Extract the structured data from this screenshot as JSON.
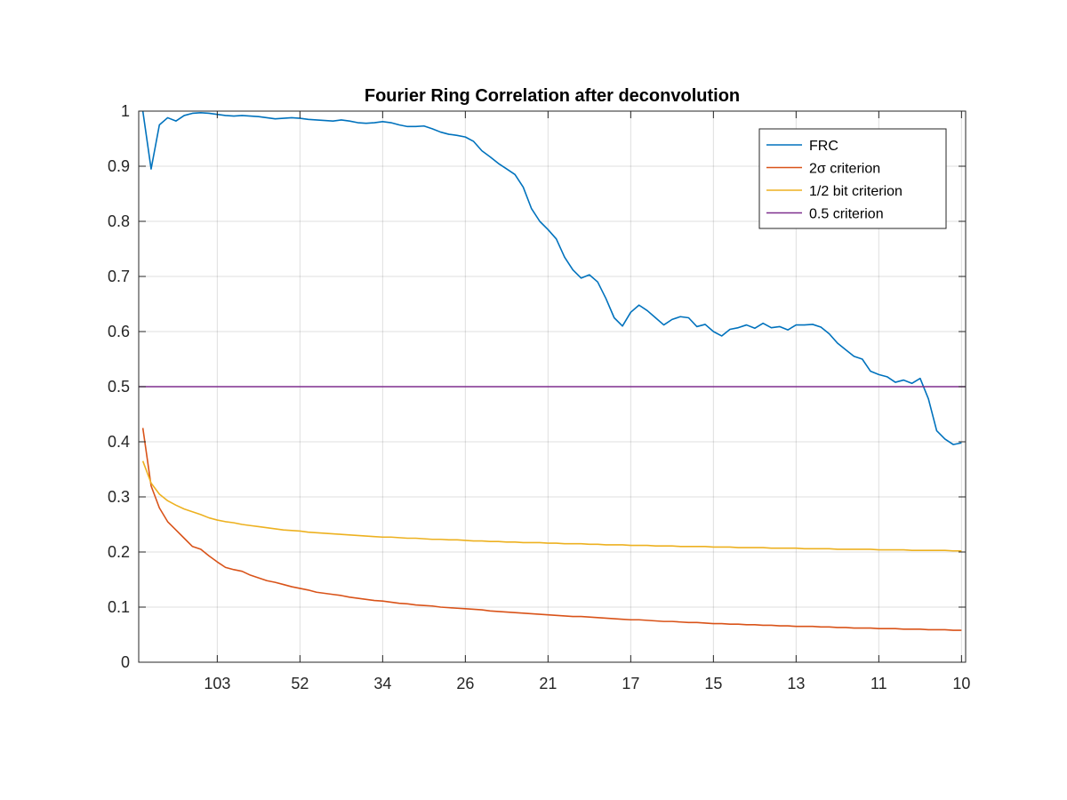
{
  "chart_data": {
    "type": "line",
    "title": "Fourier Ring Correlation after deconvolution",
    "xlabel": "",
    "ylabel": "",
    "x_tick_labels": [
      "103",
      "52",
      "34",
      "26",
      "21",
      "17",
      "15",
      "13",
      "11",
      "10"
    ],
    "x_tick_positions": [
      10,
      20,
      30,
      40,
      50,
      60,
      70,
      80,
      90,
      100
    ],
    "xlim": [
      0.5,
      100.5
    ],
    "ylim": [
      0,
      1
    ],
    "y_ticks": [
      0,
      0.1,
      0.2,
      0.3,
      0.4,
      0.5,
      0.6,
      0.7,
      0.8,
      0.9,
      1
    ],
    "y_tick_labels": [
      "0",
      "0.1",
      "0.2",
      "0.3",
      "0.4",
      "0.5",
      "0.6",
      "0.7",
      "0.8",
      "0.9",
      "1"
    ],
    "grid": true,
    "legend_position": "top-right",
    "series": [
      {
        "name": "FRC",
        "color": "#0072BD",
        "x": [
          1,
          2,
          3,
          4,
          5,
          6,
          7,
          8,
          9,
          10,
          11,
          12,
          13,
          14,
          15,
          16,
          17,
          18,
          19,
          20,
          21,
          22,
          23,
          24,
          25,
          26,
          27,
          28,
          29,
          30,
          31,
          32,
          33,
          34,
          35,
          36,
          37,
          38,
          39,
          40,
          41,
          42,
          43,
          44,
          45,
          46,
          47,
          48,
          49,
          50,
          51,
          52,
          53,
          54,
          55,
          56,
          57,
          58,
          59,
          60,
          61,
          62,
          63,
          64,
          65,
          66,
          67,
          68,
          69,
          70,
          71,
          72,
          73,
          74,
          75,
          76,
          77,
          78,
          79,
          80,
          81,
          82,
          83,
          84,
          85,
          86,
          87,
          88,
          89,
          90,
          91,
          92,
          93,
          94,
          95,
          96,
          97,
          98,
          99,
          100
        ],
        "y": [
          1.0,
          0.895,
          0.975,
          0.988,
          0.982,
          0.992,
          0.996,
          0.997,
          0.996,
          0.994,
          0.992,
          0.991,
          0.992,
          0.991,
          0.99,
          0.988,
          0.986,
          0.987,
          0.988,
          0.987,
          0.985,
          0.984,
          0.983,
          0.982,
          0.984,
          0.982,
          0.979,
          0.978,
          0.979,
          0.981,
          0.979,
          0.975,
          0.972,
          0.972,
          0.973,
          0.968,
          0.962,
          0.958,
          0.956,
          0.953,
          0.945,
          0.928,
          0.917,
          0.905,
          0.895,
          0.885,
          0.862,
          0.823,
          0.8,
          0.785,
          0.768,
          0.735,
          0.712,
          0.697,
          0.703,
          0.69,
          0.66,
          0.625,
          0.61,
          0.635,
          0.648,
          0.638,
          0.625,
          0.612,
          0.622,
          0.627,
          0.625,
          0.609,
          0.613,
          0.6,
          0.592,
          0.604,
          0.607,
          0.612,
          0.606,
          0.615,
          0.607,
          0.609,
          0.603,
          0.612,
          0.612,
          0.613,
          0.608,
          0.596,
          0.579,
          0.567,
          0.555,
          0.55,
          0.528,
          0.522,
          0.518,
          0.508,
          0.512,
          0.506,
          0.515,
          0.478,
          0.42,
          0.405,
          0.395,
          0.398
        ]
      },
      {
        "name": "2σ criterion",
        "color": "#D95319",
        "x": [
          1,
          2,
          3,
          4,
          5,
          6,
          7,
          8,
          9,
          10,
          11,
          12,
          13,
          14,
          15,
          16,
          17,
          18,
          19,
          20,
          21,
          22,
          23,
          24,
          25,
          26,
          27,
          28,
          29,
          30,
          31,
          32,
          33,
          34,
          35,
          36,
          37,
          38,
          39,
          40,
          41,
          42,
          43,
          44,
          45,
          46,
          47,
          48,
          49,
          50,
          51,
          52,
          53,
          54,
          55,
          56,
          57,
          58,
          59,
          60,
          61,
          62,
          63,
          64,
          65,
          66,
          67,
          68,
          69,
          70,
          71,
          72,
          73,
          74,
          75,
          76,
          77,
          78,
          79,
          80,
          81,
          82,
          83,
          84,
          85,
          86,
          87,
          88,
          89,
          90,
          91,
          92,
          93,
          94,
          95,
          96,
          97,
          98,
          99,
          100
        ],
        "y": [
          0.425,
          0.32,
          0.28,
          0.255,
          0.24,
          0.225,
          0.21,
          0.205,
          0.193,
          0.182,
          0.172,
          0.168,
          0.165,
          0.158,
          0.153,
          0.148,
          0.145,
          0.141,
          0.137,
          0.134,
          0.131,
          0.127,
          0.125,
          0.123,
          0.121,
          0.118,
          0.116,
          0.114,
          0.112,
          0.111,
          0.109,
          0.107,
          0.106,
          0.104,
          0.103,
          0.102,
          0.1,
          0.099,
          0.098,
          0.097,
          0.096,
          0.095,
          0.093,
          0.092,
          0.091,
          0.09,
          0.089,
          0.088,
          0.087,
          0.086,
          0.085,
          0.084,
          0.083,
          0.083,
          0.082,
          0.081,
          0.08,
          0.079,
          0.078,
          0.077,
          0.077,
          0.076,
          0.075,
          0.074,
          0.074,
          0.073,
          0.072,
          0.072,
          0.071,
          0.07,
          0.07,
          0.069,
          0.069,
          0.068,
          0.068,
          0.067,
          0.067,
          0.066,
          0.066,
          0.065,
          0.065,
          0.065,
          0.064,
          0.064,
          0.063,
          0.063,
          0.062,
          0.062,
          0.062,
          0.061,
          0.061,
          0.061,
          0.06,
          0.06,
          0.06,
          0.059,
          0.059,
          0.059,
          0.058,
          0.058
        ]
      },
      {
        "name": "1/2 bit criterion",
        "color": "#EDB120",
        "x": [
          1,
          2,
          3,
          4,
          5,
          6,
          7,
          8,
          9,
          10,
          11,
          12,
          13,
          14,
          15,
          16,
          17,
          18,
          19,
          20,
          21,
          22,
          23,
          24,
          25,
          26,
          27,
          28,
          29,
          30,
          31,
          32,
          33,
          34,
          35,
          36,
          37,
          38,
          39,
          40,
          41,
          42,
          43,
          44,
          45,
          46,
          47,
          48,
          49,
          50,
          51,
          52,
          53,
          54,
          55,
          56,
          57,
          58,
          59,
          60,
          61,
          62,
          63,
          64,
          65,
          66,
          67,
          68,
          69,
          70,
          71,
          72,
          73,
          74,
          75,
          76,
          77,
          78,
          79,
          80,
          81,
          82,
          83,
          84,
          85,
          86,
          87,
          88,
          89,
          90,
          91,
          92,
          93,
          94,
          95,
          96,
          97,
          98,
          99,
          100
        ],
        "y": [
          0.365,
          0.325,
          0.305,
          0.293,
          0.285,
          0.278,
          0.273,
          0.268,
          0.262,
          0.258,
          0.255,
          0.253,
          0.25,
          0.248,
          0.246,
          0.244,
          0.242,
          0.24,
          0.239,
          0.238,
          0.236,
          0.235,
          0.234,
          0.233,
          0.232,
          0.231,
          0.23,
          0.229,
          0.228,
          0.227,
          0.227,
          0.226,
          0.225,
          0.225,
          0.224,
          0.223,
          0.223,
          0.222,
          0.222,
          0.221,
          0.22,
          0.22,
          0.219,
          0.219,
          0.218,
          0.218,
          0.217,
          0.217,
          0.217,
          0.216,
          0.216,
          0.215,
          0.215,
          0.215,
          0.214,
          0.214,
          0.213,
          0.213,
          0.213,
          0.212,
          0.212,
          0.212,
          0.211,
          0.211,
          0.211,
          0.21,
          0.21,
          0.21,
          0.21,
          0.209,
          0.209,
          0.209,
          0.208,
          0.208,
          0.208,
          0.208,
          0.207,
          0.207,
          0.207,
          0.207,
          0.206,
          0.206,
          0.206,
          0.206,
          0.205,
          0.205,
          0.205,
          0.205,
          0.205,
          0.204,
          0.204,
          0.204,
          0.204,
          0.203,
          0.203,
          0.203,
          0.203,
          0.203,
          0.202,
          0.202
        ]
      },
      {
        "name": "0.5 criterion",
        "color": "#7E2F8E",
        "x": [
          0.5,
          100.5
        ],
        "y": [
          0.5,
          0.5
        ]
      }
    ]
  }
}
